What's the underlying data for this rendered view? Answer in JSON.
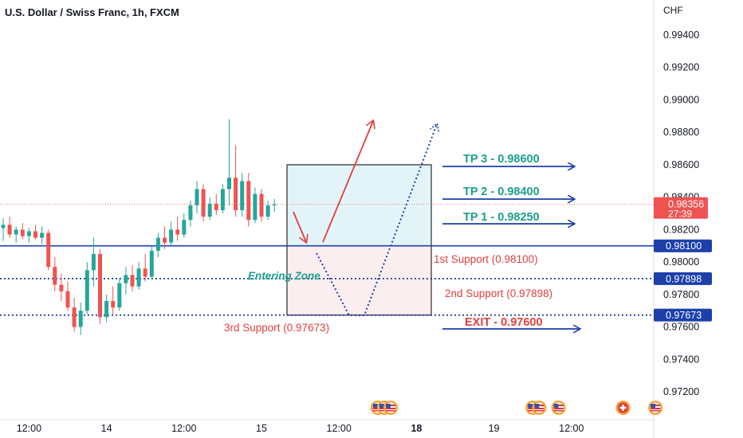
{
  "header": {
    "title": "U.S. Dollar / Swiss Franc, 1h, FXCM"
  },
  "chart_data": {
    "type": "candlestick",
    "currency": "CHF",
    "ylim": [
      0.9712,
      0.9952
    ],
    "y_ticks": [
      {
        "value": 0.994,
        "label": "0.99400"
      },
      {
        "value": 0.992,
        "label": "0.99200"
      },
      {
        "value": 0.99,
        "label": "0.99000"
      },
      {
        "value": 0.988,
        "label": "0.98800"
      },
      {
        "value": 0.986,
        "label": "0.98600"
      },
      {
        "value": 0.984,
        "label": "0.98400"
      },
      {
        "value": 0.982,
        "label": "0.98200"
      },
      {
        "value": 0.98,
        "label": "0.98000"
      },
      {
        "value": 0.978,
        "label": "0.97800"
      },
      {
        "value": 0.976,
        "label": "0.97600"
      },
      {
        "value": 0.974,
        "label": "0.97400"
      },
      {
        "value": 0.972,
        "label": "0.97200"
      }
    ],
    "x_ticks": [
      {
        "bar": 4,
        "label": "12:00",
        "bold": false
      },
      {
        "bar": 16,
        "label": "14",
        "bold": false
      },
      {
        "bar": 28,
        "label": "12:00",
        "bold": false
      },
      {
        "bar": 40,
        "label": "15",
        "bold": false
      },
      {
        "bar": 52,
        "label": "12:00",
        "bold": false
      },
      {
        "bar": 64,
        "label": "18",
        "bold": true
      },
      {
        "bar": 76,
        "label": "19",
        "bold": false
      },
      {
        "bar": 88,
        "label": "12:00",
        "bold": false
      }
    ],
    "last_price": {
      "value": 0.98356,
      "label": "0.98356",
      "countdown": "27:39"
    },
    "price_tags": [
      {
        "value": 0.981,
        "label": "0.98100"
      },
      {
        "value": 0.97898,
        "label": "0.97898"
      },
      {
        "value": 0.97673,
        "label": "0.97673"
      }
    ],
    "candles": [
      {
        "o": 0.9821,
        "h": 0.9827,
        "l": 0.9813,
        "c": 0.9823
      },
      {
        "o": 0.9823,
        "h": 0.9828,
        "l": 0.9815,
        "c": 0.9817
      },
      {
        "o": 0.9817,
        "h": 0.9822,
        "l": 0.9812,
        "c": 0.982
      },
      {
        "o": 0.982,
        "h": 0.9824,
        "l": 0.9814,
        "c": 0.9816
      },
      {
        "o": 0.9816,
        "h": 0.9821,
        "l": 0.9812,
        "c": 0.9819
      },
      {
        "o": 0.9819,
        "h": 0.9823,
        "l": 0.9814,
        "c": 0.9815
      },
      {
        "o": 0.9815,
        "h": 0.9822,
        "l": 0.9811,
        "c": 0.9818
      },
      {
        "o": 0.9818,
        "h": 0.982,
        "l": 0.9795,
        "c": 0.9797
      },
      {
        "o": 0.9797,
        "h": 0.9803,
        "l": 0.9782,
        "c": 0.9786
      },
      {
        "o": 0.9786,
        "h": 0.9793,
        "l": 0.9776,
        "c": 0.9782
      },
      {
        "o": 0.9782,
        "h": 0.9788,
        "l": 0.977,
        "c": 0.9772
      },
      {
        "o": 0.9772,
        "h": 0.9778,
        "l": 0.9757,
        "c": 0.976
      },
      {
        "o": 0.976,
        "h": 0.9775,
        "l": 0.9755,
        "c": 0.977
      },
      {
        "o": 0.977,
        "h": 0.98,
        "l": 0.9768,
        "c": 0.9795
      },
      {
        "o": 0.9795,
        "h": 0.9815,
        "l": 0.9785,
        "c": 0.9805
      },
      {
        "o": 0.9805,
        "h": 0.9808,
        "l": 0.9762,
        "c": 0.9766
      },
      {
        "o": 0.9766,
        "h": 0.978,
        "l": 0.9763,
        "c": 0.9776
      },
      {
        "o": 0.9776,
        "h": 0.9785,
        "l": 0.9768,
        "c": 0.9772
      },
      {
        "o": 0.9772,
        "h": 0.979,
        "l": 0.977,
        "c": 0.9787
      },
      {
        "o": 0.9787,
        "h": 0.9797,
        "l": 0.978,
        "c": 0.9792
      },
      {
        "o": 0.9792,
        "h": 0.9798,
        "l": 0.9782,
        "c": 0.9785
      },
      {
        "o": 0.9785,
        "h": 0.98,
        "l": 0.9783,
        "c": 0.9796
      },
      {
        "o": 0.9796,
        "h": 0.9805,
        "l": 0.9788,
        "c": 0.9791
      },
      {
        "o": 0.9791,
        "h": 0.981,
        "l": 0.9789,
        "c": 0.9807
      },
      {
        "o": 0.9807,
        "h": 0.9818,
        "l": 0.9803,
        "c": 0.9815
      },
      {
        "o": 0.9815,
        "h": 0.9822,
        "l": 0.9808,
        "c": 0.9812
      },
      {
        "o": 0.9812,
        "h": 0.9825,
        "l": 0.981,
        "c": 0.982
      },
      {
        "o": 0.982,
        "h": 0.9828,
        "l": 0.9813,
        "c": 0.9817
      },
      {
        "o": 0.9817,
        "h": 0.983,
        "l": 0.9815,
        "c": 0.9826
      },
      {
        "o": 0.9826,
        "h": 0.9838,
        "l": 0.9822,
        "c": 0.9835
      },
      {
        "o": 0.9835,
        "h": 0.985,
        "l": 0.983,
        "c": 0.9845
      },
      {
        "o": 0.9845,
        "h": 0.9848,
        "l": 0.9825,
        "c": 0.9828
      },
      {
        "o": 0.9828,
        "h": 0.984,
        "l": 0.9826,
        "c": 0.9836
      },
      {
        "o": 0.9836,
        "h": 0.9842,
        "l": 0.9829,
        "c": 0.9832
      },
      {
        "o": 0.9832,
        "h": 0.9848,
        "l": 0.983,
        "c": 0.9845
      },
      {
        "o": 0.9845,
        "h": 0.9888,
        "l": 0.9835,
        "c": 0.9852
      },
      {
        "o": 0.9852,
        "h": 0.9872,
        "l": 0.9828,
        "c": 0.9832
      },
      {
        "o": 0.9832,
        "h": 0.9855,
        "l": 0.9828,
        "c": 0.985
      },
      {
        "o": 0.985,
        "h": 0.9855,
        "l": 0.9822,
        "c": 0.9826
      },
      {
        "o": 0.9826,
        "h": 0.9846,
        "l": 0.9824,
        "c": 0.9842
      },
      {
        "o": 0.9842,
        "h": 0.9845,
        "l": 0.9825,
        "c": 0.9828
      },
      {
        "o": 0.9828,
        "h": 0.9838,
        "l": 0.9826,
        "c": 0.9835
      },
      {
        "o": 0.9835,
        "h": 0.9839,
        "l": 0.9831,
        "c": 0.98356
      }
    ],
    "levels": [
      {
        "value": 0.981,
        "style": "solid",
        "color": "#1c3faa"
      },
      {
        "value": 0.97898,
        "style": "dotted",
        "color": "#1c3faa"
      },
      {
        "value": 0.97673,
        "style": "dotted",
        "color": "#1c3faa"
      }
    ],
    "zones": {
      "target_box": {
        "top": 0.986,
        "bottom": 0.981,
        "fill": "#e3f4f8"
      },
      "stop_box": {
        "top": 0.981,
        "bottom": 0.97673,
        "fill": "#fbeeee"
      }
    },
    "annotations": [
      {
        "key": "tp3",
        "text": "TP 3 - 0.98600",
        "color": "#1e9e8e",
        "value": 0.986
      },
      {
        "key": "tp2",
        "text": "TP 2 - 0.98400",
        "color": "#1e9e8e",
        "value": 0.984
      },
      {
        "key": "tp1",
        "text": "TP 1 - 0.98250",
        "color": "#1e9e8e",
        "value": 0.9825
      },
      {
        "key": "exit",
        "text": "EXIT - 0.97600",
        "color": "#e0403e",
        "value": 0.976
      },
      {
        "key": "s1",
        "text": "1st Support (0.98100)",
        "color": "#e0403e",
        "value": 0.981
      },
      {
        "key": "s2",
        "text": "2nd Support (0.97898)",
        "color": "#e0403e",
        "value": 0.97898
      },
      {
        "key": "s3",
        "text": "3rd Support (0.97673)",
        "color": "#e0403e",
        "value": 0.97673
      },
      {
        "key": "zone",
        "text": "Entering Zone",
        "color": "#1e9e8e",
        "value": 0.97898
      }
    ],
    "events": [
      {
        "bar": 58,
        "flag": "us"
      },
      {
        "bar": 59,
        "flag": "us"
      },
      {
        "bar": 60,
        "flag": "us"
      },
      {
        "bar": 82,
        "flag": "us"
      },
      {
        "bar": 83,
        "flag": "us"
      },
      {
        "bar": 86,
        "flag": "us"
      },
      {
        "bar": 96,
        "flag": "ch"
      },
      {
        "bar": 101,
        "flag": "us"
      }
    ],
    "colors": {
      "up": "#26a69a",
      "down": "#ef5350",
      "axis_text": "#131722",
      "grid": "#f0f3fa"
    }
  }
}
